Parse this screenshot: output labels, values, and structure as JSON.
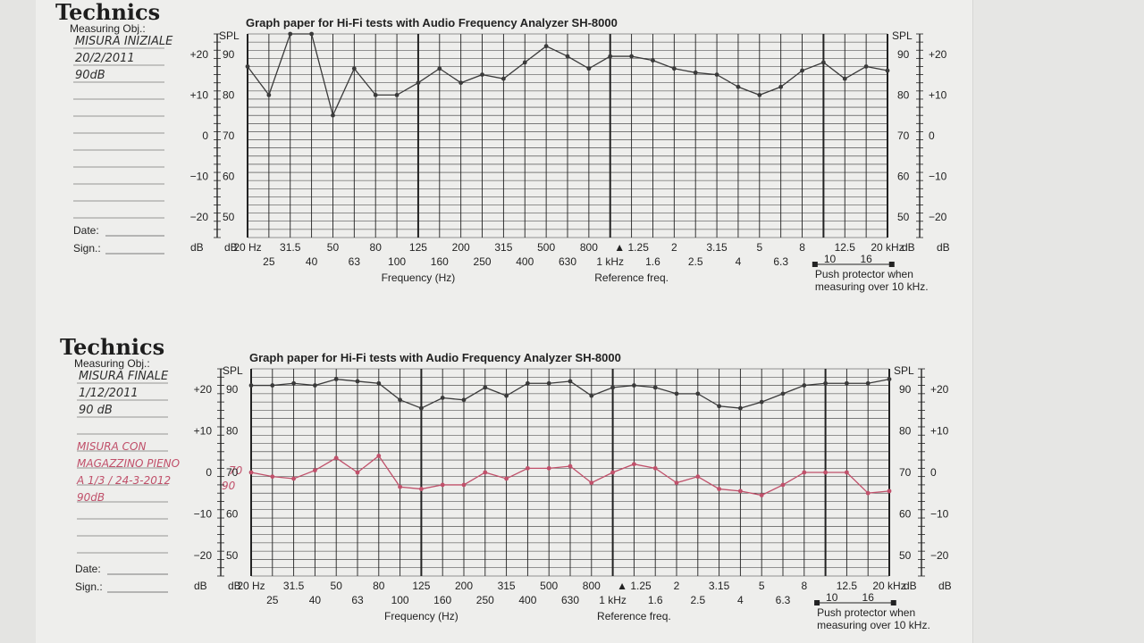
{
  "chart_data": [
    {
      "type": "line",
      "brand": "Technics",
      "title": "Graph paper for Hi-Fi tests with Audio Frequency Analyzer SH-8000",
      "measuring_label": "Measuring Obj.:",
      "handwritten": [
        "MISURA INIZIALE",
        "20/2/2011",
        "90dB"
      ],
      "date_label": "Date:",
      "sign_label": "Sign.:",
      "xlabel": "Frequency (Hz)",
      "reference_label": "Reference freq.",
      "protector_note": [
        "Push protector when",
        "measuring over 10 kHz."
      ],
      "protector_scale": [
        "10",
        "16"
      ],
      "ylabel_spl": "SPL",
      "ylabel_db": "dB",
      "x_ticks_upper": [
        "20 Hz",
        "31.5",
        "50",
        "80",
        "125",
        "200",
        "315",
        "500",
        "800",
        "▲ 1.25",
        "2",
        "3.15",
        "5",
        "8",
        "12.5",
        "20 kHz"
      ],
      "x_ticks_lower": [
        "25",
        "40",
        "63",
        "100",
        "160",
        "250",
        "400",
        "630",
        "1 kHz",
        "1.6",
        "2.5",
        "4",
        "6.3"
      ],
      "y_ticks_spl": [
        "90",
        "80",
        "70",
        "60",
        "50"
      ],
      "y_ticks_db": [
        "+20",
        "+10",
        "0",
        "−10",
        "−20"
      ],
      "ylim": [
        45,
        95
      ],
      "series": [
        {
          "color": "#3a3a3a",
          "x": [
            "20",
            "25",
            "31.5",
            "40",
            "50",
            "63",
            "80",
            "100",
            "125",
            "160",
            "200",
            "250",
            "315",
            "400",
            "500",
            "630",
            "800",
            "1k",
            "1.25k",
            "1.6k",
            "2k",
            "2.5k",
            "3.15k",
            "4k",
            "5k",
            "6.3k",
            "8k",
            "10k",
            "12.5k",
            "16k",
            "20k"
          ],
          "y": [
            87,
            80,
            95,
            95,
            75,
            86.5,
            80,
            80,
            83,
            86.5,
            83,
            85,
            84,
            88,
            92,
            89.5,
            86.5,
            89.5,
            89.5,
            88.5,
            86.5,
            85.5,
            85,
            82,
            80,
            82,
            86,
            88,
            84,
            87,
            86
          ]
        }
      ]
    },
    {
      "type": "line",
      "brand": "Technics",
      "title": "Graph paper for Hi-Fi tests with Audio Frequency Analyzer SH-8000",
      "measuring_label": "Measuring Obj.:",
      "handwritten": [
        "MISURA FINALE",
        "1/12/2011",
        "90 dB"
      ],
      "handwritten_red": [
        "MISURA CON",
        "MAGAZZINO PIENO",
        "A 1/3 / 24-3-2012",
        "90dB"
      ],
      "margin_marks": [
        "70",
        "90"
      ],
      "date_label": "Date:",
      "sign_label": "Sign.:",
      "xlabel": "Frequency (Hz)",
      "reference_label": "Reference freq.",
      "protector_note": [
        "Push protector when",
        "measuring over 10 kHz."
      ],
      "protector_scale": [
        "10",
        "16"
      ],
      "ylabel_spl": "SPL",
      "ylabel_db": "dB",
      "x_ticks_upper": [
        "20 Hz",
        "31.5",
        "50",
        "80",
        "125",
        "200",
        "315",
        "500",
        "800",
        "▲ 1.25",
        "2",
        "3.15",
        "5",
        "8",
        "12.5",
        "20 kHz"
      ],
      "x_ticks_lower": [
        "25",
        "40",
        "63",
        "100",
        "160",
        "250",
        "400",
        "630",
        "1 kHz",
        "1.6",
        "2.5",
        "4",
        "6.3"
      ],
      "y_ticks_spl": [
        "90",
        "80",
        "70",
        "60",
        "50"
      ],
      "y_ticks_db": [
        "+20",
        "+10",
        "0",
        "−10",
        "−20"
      ],
      "ylim": [
        45,
        95
      ],
      "series": [
        {
          "color": "#3a3a3a",
          "x": [
            "20",
            "25",
            "31.5",
            "40",
            "50",
            "63",
            "80",
            "100",
            "125",
            "160",
            "200",
            "250",
            "315",
            "400",
            "500",
            "630",
            "800",
            "1k",
            "1.25k",
            "1.6k",
            "2k",
            "2.5k",
            "3.15k",
            "4k",
            "5k",
            "6.3k",
            "8k",
            "10k",
            "12.5k",
            "16k",
            "20k"
          ],
          "y": [
            91,
            91,
            91.5,
            91,
            92.5,
            92,
            91.5,
            87.5,
            85.5,
            88,
            87.5,
            90.5,
            88.5,
            91.5,
            91.5,
            92,
            88.5,
            90.5,
            91,
            90.5,
            89,
            89,
            86,
            85.5,
            87,
            89,
            91,
            91.5,
            91.5,
            91.5,
            92.5
          ]
        },
        {
          "color": "#c0506a",
          "x": [
            "20",
            "25",
            "31.5",
            "40",
            "50",
            "63",
            "80",
            "100",
            "125",
            "160",
            "200",
            "250",
            "315",
            "400",
            "500",
            "630",
            "800",
            "1k",
            "1.25k",
            "1.6k",
            "2k",
            "2.5k",
            "3.15k",
            "4k",
            "5k",
            "6.3k",
            "8k",
            "10k",
            "12.5k",
            "16k",
            "20k"
          ],
          "y": [
            70,
            69,
            68.5,
            70.5,
            73.5,
            70,
            74,
            66.5,
            66,
            67,
            67,
            70,
            68.5,
            71,
            71,
            71.5,
            67.5,
            70,
            72,
            71,
            67.5,
            69,
            66,
            65.5,
            64.5,
            67,
            70,
            70,
            70,
            65,
            65.5
          ]
        }
      ]
    }
  ]
}
